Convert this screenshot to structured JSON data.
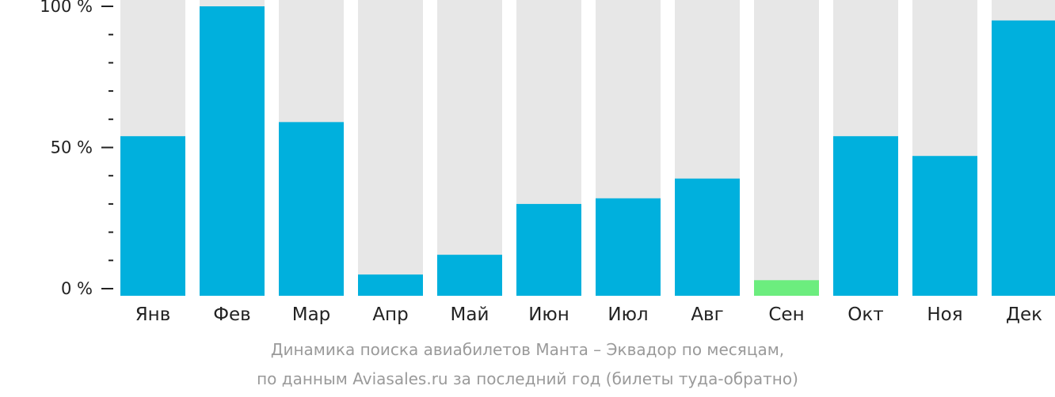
{
  "chart_data": {
    "type": "bar",
    "categories": [
      "Янв",
      "Фев",
      "Мар",
      "Апр",
      "Май",
      "Июн",
      "Июл",
      "Авг",
      "Сен",
      "Окт",
      "Ноя",
      "Дек"
    ],
    "values": [
      54,
      100,
      59,
      5,
      12,
      30,
      32,
      39,
      3,
      54,
      47,
      95
    ],
    "ylim": [
      0,
      100
    ],
    "yticks": [
      {
        "value": 0,
        "label": "0 %"
      },
      {
        "value": 50,
        "label": "50 %"
      },
      {
        "value": 100,
        "label": "100 %"
      }
    ],
    "minor_ticks": [
      10,
      20,
      30,
      40,
      60,
      70,
      80,
      90
    ],
    "highlight_index": 8,
    "colors": {
      "bar": "#00b0dd",
      "highlight": "#6ced7e",
      "background_bar": "#e7e7e7",
      "axis": "#222222"
    },
    "caption_lines": [
      "Динамика поиска авиабилетов Манта – Эквадор по месяцам,",
      "по данным Aviasales.ru за последний год (билеты туда-обратно)"
    ]
  }
}
